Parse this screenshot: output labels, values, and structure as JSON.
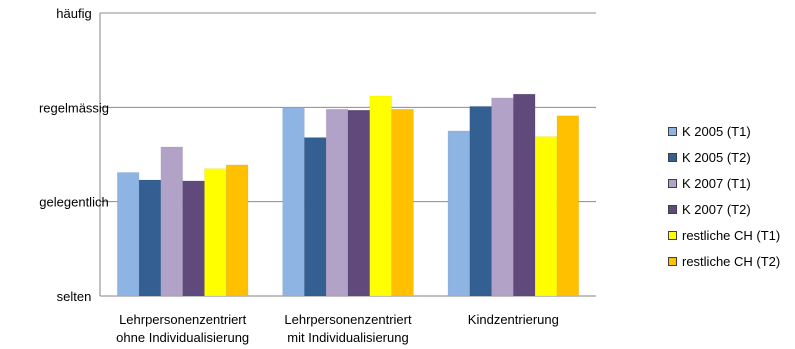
{
  "chart_data": {
    "type": "bar",
    "title": "",
    "xlabel": "",
    "ylabel": "",
    "ylim": [
      0,
      3
    ],
    "y_ticks": [
      {
        "value": 0,
        "label": "selten"
      },
      {
        "value": 1,
        "label": "gelegentlich"
      },
      {
        "value": 2,
        "label": "regelmässig"
      },
      {
        "value": 3,
        "label": "häufig"
      }
    ],
    "grid": true,
    "legend_position": "right",
    "categories": [
      [
        "Lehrpersonenzentriert",
        "ohne Individualisierung"
      ],
      [
        "Lehrpersonenzentriert",
        "mit Individualisierung"
      ],
      [
        "Kindzentrierung"
      ]
    ],
    "series": [
      {
        "name": "K 2005 (T1)",
        "color": "#8EB4E3",
        "values": [
          1.31,
          2.0,
          1.75
        ]
      },
      {
        "name": "K 2005 (T2)",
        "color": "#335F92",
        "values": [
          1.23,
          1.68,
          2.01
        ]
      },
      {
        "name": "K 2007 (T1)",
        "color": "#B3A2C7",
        "values": [
          1.58,
          1.98,
          2.1
        ]
      },
      {
        "name": "K 2007 (T2)",
        "color": "#604A7B",
        "values": [
          1.22,
          1.97,
          2.14
        ]
      },
      {
        "name": "restliche CH (T1)",
        "color": "#FFFF00",
        "values": [
          1.35,
          2.12,
          1.69
        ]
      },
      {
        "name": "restliche CH (T2)",
        "color": "#FFC000",
        "values": [
          1.39,
          1.98,
          1.91
        ]
      }
    ]
  }
}
